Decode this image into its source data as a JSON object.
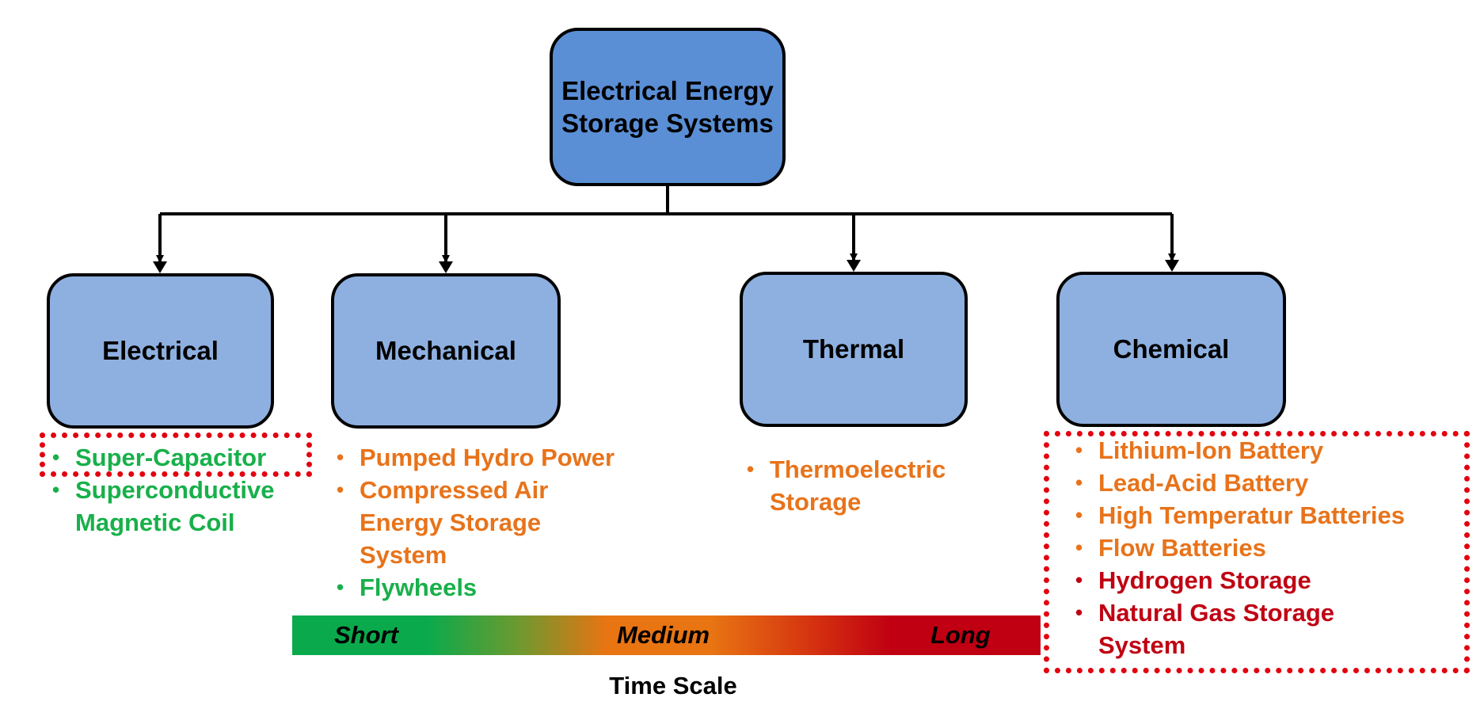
{
  "root": {
    "line1": "Electrical Energy",
    "line2": "Storage Systems"
  },
  "categories": [
    {
      "label": "Electrical",
      "items": [
        {
          "text": "Super-Capacitor",
          "color": "#18b04a"
        },
        {
          "text": "Superconductive Magnetic Coil",
          "color": "#18b04a"
        }
      ]
    },
    {
      "label": "Mechanical",
      "items": [
        {
          "text": "Pumped Hydro Power",
          "color": "#e8731a"
        },
        {
          "text": "Compressed Air Energy Storage System",
          "color": "#e8731a"
        },
        {
          "text": "Flywheels",
          "color": "#18b04a"
        }
      ]
    },
    {
      "label": "Thermal",
      "items": [
        {
          "text": "Thermoelectric Storage",
          "color": "#e8731a"
        }
      ]
    },
    {
      "label": "Chemical",
      "items": [
        {
          "text": "Lithium-Ion Battery",
          "color": "#e8731a"
        },
        {
          "text": "Lead-Acid Battery",
          "color": "#e8731a"
        },
        {
          "text": "High Temperatur Batteries",
          "color": "#e8731a"
        },
        {
          "text": "Flow Batteries",
          "color": "#e8731a"
        },
        {
          "text": "Hydrogen Storage",
          "color": "#c00012"
        },
        {
          "text": "Natural Gas Storage System",
          "color": "#c00012"
        }
      ]
    }
  ],
  "time_scale": {
    "title": "Time Scale",
    "labels": [
      "Short",
      "Medium",
      "Long"
    ],
    "colors": {
      "short": "#0aaa4c",
      "medium": "#e87412",
      "long": "#c00012"
    }
  },
  "highlight_color": "#e3000f"
}
